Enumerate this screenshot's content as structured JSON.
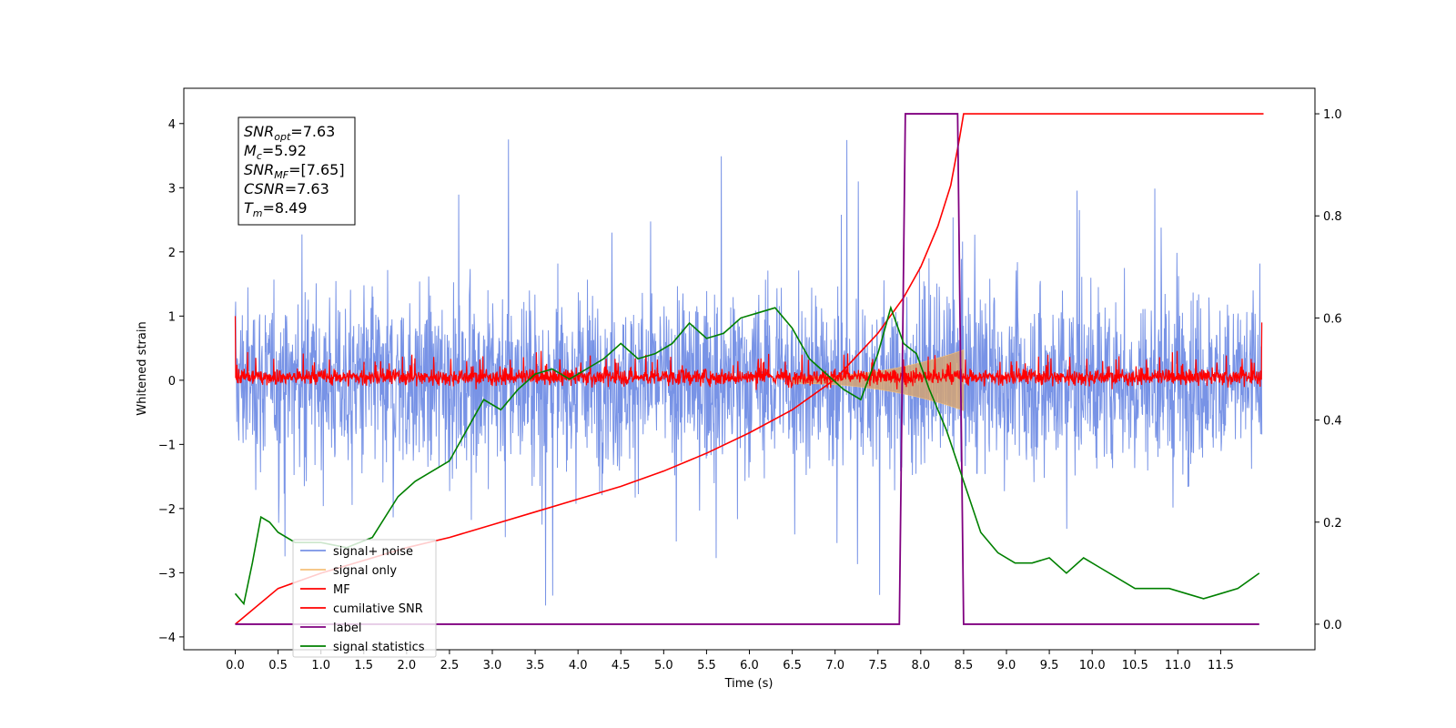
{
  "chart_data": {
    "type": "line",
    "title": "",
    "xlabel": "Time (s)",
    "ylabel": "Whitened strain",
    "xlim": [
      -0.6,
      12.6
    ],
    "ylim": [
      -4.2,
      4.55
    ],
    "y2lim": [
      -0.05,
      1.05
    ],
    "xticks": [
      "0.0",
      "0.5",
      "1.0",
      "1.5",
      "2.0",
      "2.5",
      "3.0",
      "3.5",
      "4.0",
      "4.5",
      "5.0",
      "5.5",
      "6.0",
      "6.5",
      "7.0",
      "7.5",
      "8.0",
      "8.5",
      "9.0",
      "9.5",
      "10.0",
      "10.5",
      "11.0",
      "11.5"
    ],
    "yticks": [
      "−4",
      "−3",
      "−2",
      "−1",
      "0",
      "1",
      "2",
      "3",
      "4"
    ],
    "y2ticks": [
      "0.0",
      "0.2",
      "0.4",
      "0.6",
      "0.8",
      "1.0"
    ],
    "grid": false,
    "legend_position": "lower-left",
    "info_box": [
      {
        "base": "SNR",
        "sub": "opt",
        "value": "=7.63"
      },
      {
        "base": "M",
        "sub": "c",
        "value": "=5.92"
      },
      {
        "base": "SNR",
        "sub": "MF",
        "value": "=[7.65]"
      },
      {
        "base": "CSNR",
        "sub": "",
        "value": "=7.63"
      },
      {
        "base": "T",
        "sub": "m",
        "value": "=8.49"
      }
    ],
    "series": [
      {
        "name": "signal+ noise",
        "axis": "left",
        "color": "#7893e6",
        "style": "dense noise, approx. range -3.7 to 4.1 over 0–12 s"
      },
      {
        "name": "signal only",
        "axis": "left",
        "color": "#f5c07a",
        "style": "chirp envelope growing from ~±0.1 at 6.5 s to ~±0.45 at 8.45 s, zero after 8.5 s"
      },
      {
        "name": "MF",
        "axis": "left",
        "color": "#ff0000",
        "style": "dense trace within approx. -0.2 to 0.45"
      },
      {
        "name": "cumilative SNR",
        "axis": "right",
        "color": "#ff0000",
        "x": [
          0,
          0.5,
          1,
          1.5,
          2,
          2.5,
          3,
          3.5,
          4,
          4.5,
          5,
          5.5,
          6,
          6.5,
          7,
          7.5,
          7.8,
          8.0,
          8.2,
          8.35,
          8.45,
          8.5,
          12
        ],
        "y": [
          0.0,
          0.07,
          0.1,
          0.125,
          0.15,
          0.17,
          0.195,
          0.22,
          0.245,
          0.27,
          0.3,
          0.335,
          0.375,
          0.42,
          0.48,
          0.57,
          0.64,
          0.7,
          0.78,
          0.86,
          0.95,
          1.0,
          1.0
        ]
      },
      {
        "name": "label",
        "axis": "right",
        "color": "#800080",
        "x": [
          0,
          7.75,
          7.82,
          8.43,
          8.5,
          11.95
        ],
        "y": [
          0,
          0,
          1,
          1,
          0,
          0
        ]
      },
      {
        "name": "signal statistics",
        "axis": "right",
        "color": "#008000",
        "x": [
          0,
          0.1,
          0.2,
          0.3,
          0.4,
          0.5,
          0.7,
          1.0,
          1.3,
          1.6,
          1.9,
          2.1,
          2.3,
          2.5,
          2.7,
          2.9,
          3.1,
          3.3,
          3.5,
          3.7,
          3.9,
          4.1,
          4.3,
          4.5,
          4.7,
          4.9,
          5.1,
          5.3,
          5.5,
          5.7,
          5.9,
          6.1,
          6.3,
          6.5,
          6.7,
          6.9,
          7.1,
          7.3,
          7.5,
          7.65,
          7.8,
          7.95,
          8.1,
          8.3,
          8.5,
          8.7,
          8.9,
          9.1,
          9.3,
          9.5,
          9.7,
          9.9,
          10.1,
          10.3,
          10.5,
          10.7,
          10.9,
          11.1,
          11.3,
          11.5,
          11.7,
          11.95
        ],
        "y": [
          0.06,
          0.04,
          0.12,
          0.21,
          0.2,
          0.18,
          0.16,
          0.16,
          0.15,
          0.17,
          0.25,
          0.28,
          0.3,
          0.32,
          0.38,
          0.44,
          0.42,
          0.46,
          0.49,
          0.5,
          0.48,
          0.5,
          0.52,
          0.55,
          0.52,
          0.53,
          0.55,
          0.59,
          0.56,
          0.57,
          0.6,
          0.61,
          0.62,
          0.58,
          0.52,
          0.49,
          0.46,
          0.44,
          0.53,
          0.62,
          0.55,
          0.53,
          0.46,
          0.38,
          0.28,
          0.18,
          0.14,
          0.12,
          0.12,
          0.13,
          0.1,
          0.13,
          0.11,
          0.09,
          0.07,
          0.07,
          0.07,
          0.06,
          0.05,
          0.06,
          0.07,
          0.1
        ]
      }
    ]
  }
}
